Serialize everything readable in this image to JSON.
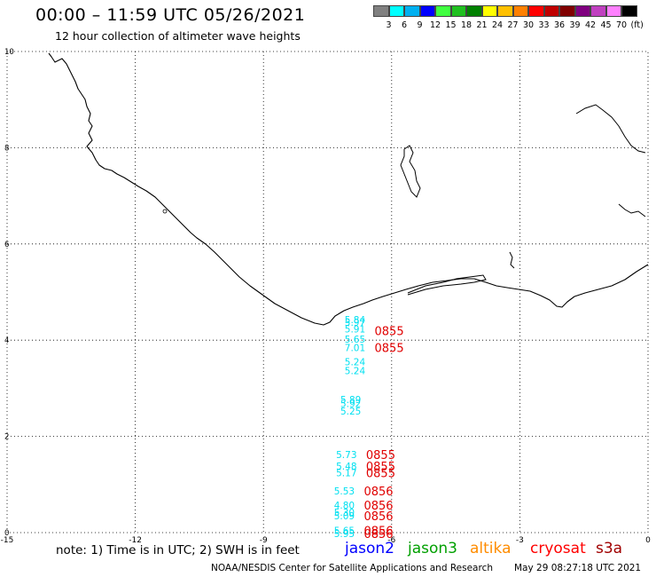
{
  "title": "00:00 – 11:59 UTC 05/26/2021",
  "subtitle": "12 hour collection of altimeter wave heights",
  "legend": {
    "colors": [
      "#808080",
      "#00ffff",
      "#00b0f0",
      "#0000ff",
      "#40ff40",
      "#20c020",
      "#008000",
      "#ffff00",
      "#ffc000",
      "#ff8000",
      "#ff0000",
      "#c00000",
      "#800000",
      "#800080",
      "#c040c0",
      "#ff80ff",
      "#000000"
    ],
    "ticks": [
      "3",
      "6",
      "9",
      "12",
      "15",
      "18",
      "21",
      "24",
      "27",
      "30",
      "33",
      "36",
      "39",
      "42",
      "45",
      "70"
    ],
    "unit": "(ft)"
  },
  "axes": {
    "x_ticks": [
      "-15",
      "-12",
      "-9",
      "-6",
      "-3",
      "0"
    ],
    "y_ticks": [
      "0",
      "2",
      "4",
      "6",
      "8",
      "10"
    ]
  },
  "wave_heights": [
    {
      "lon": -7.1,
      "lat": 4.43,
      "label": "5.84"
    },
    {
      "lon": -7.1,
      "lat": 4.37,
      "label": "5.97"
    },
    {
      "lon": -7.1,
      "lat": 4.23,
      "label": "5.91"
    },
    {
      "lon": -7.1,
      "lat": 4.02,
      "label": "5.65"
    },
    {
      "lon": -7.1,
      "lat": 3.85,
      "label": "7.01"
    },
    {
      "lon": -7.1,
      "lat": 3.55,
      "label": "5.24"
    },
    {
      "lon": -7.1,
      "lat": 3.37,
      "label": "5.24"
    },
    {
      "lon": -7.2,
      "lat": 2.77,
      "label": "5.89"
    },
    {
      "lon": -7.2,
      "lat": 2.68,
      "label": "5.92"
    },
    {
      "lon": -7.2,
      "lat": 2.53,
      "label": "5.25"
    },
    {
      "lon": -7.3,
      "lat": 1.62,
      "label": "5.73"
    },
    {
      "lon": -7.3,
      "lat": 1.38,
      "label": "5.48"
    },
    {
      "lon": -7.3,
      "lat": 1.25,
      "label": "5.17"
    },
    {
      "lon": -7.35,
      "lat": 0.87,
      "label": "5.53"
    },
    {
      "lon": -7.35,
      "lat": 0.57,
      "label": "4.80"
    },
    {
      "lon": -7.35,
      "lat": 0.42,
      "label": "5.30"
    },
    {
      "lon": -7.35,
      "lat": 0.35,
      "label": "5.09"
    },
    {
      "lon": -7.35,
      "lat": 0.05,
      "label": "5.65"
    },
    {
      "lon": -7.35,
      "lat": -0.02,
      "label": "5.95"
    }
  ],
  "times": [
    {
      "lon": -6.4,
      "lat": 4.2,
      "label": "0855"
    },
    {
      "lon": -6.4,
      "lat": 3.85,
      "label": "0855"
    },
    {
      "lon": -6.6,
      "lat": 1.62,
      "label": "0855"
    },
    {
      "lon": -6.6,
      "lat": 1.38,
      "label": "0855"
    },
    {
      "lon": -6.6,
      "lat": 1.25,
      "label": "0855"
    },
    {
      "lon": -6.65,
      "lat": 0.87,
      "label": "0856"
    },
    {
      "lon": -6.65,
      "lat": 0.57,
      "label": "0856"
    },
    {
      "lon": -6.65,
      "lat": 0.35,
      "label": "0856"
    },
    {
      "lon": -6.65,
      "lat": 0.05,
      "label": "0856"
    },
    {
      "lon": -6.65,
      "lat": -0.02,
      "label": "0856"
    }
  ],
  "note": "note: 1) Time is in UTC; 2) SWH is in feet",
  "satellites": [
    {
      "name": "jason2",
      "color": "#0000ff"
    },
    {
      "name": "jason3",
      "color": "#00a000"
    },
    {
      "name": "altika",
      "color": "#ff8c00"
    },
    {
      "name": "cryosat",
      "color": "#ff0000"
    },
    {
      "name": "s3a",
      "color": "#a00000"
    }
  ],
  "credit": "NOAA/NESDIS Center for Satellite Applications and Research",
  "credit_time": "May 29 08:27:18 UTC 2021"
}
